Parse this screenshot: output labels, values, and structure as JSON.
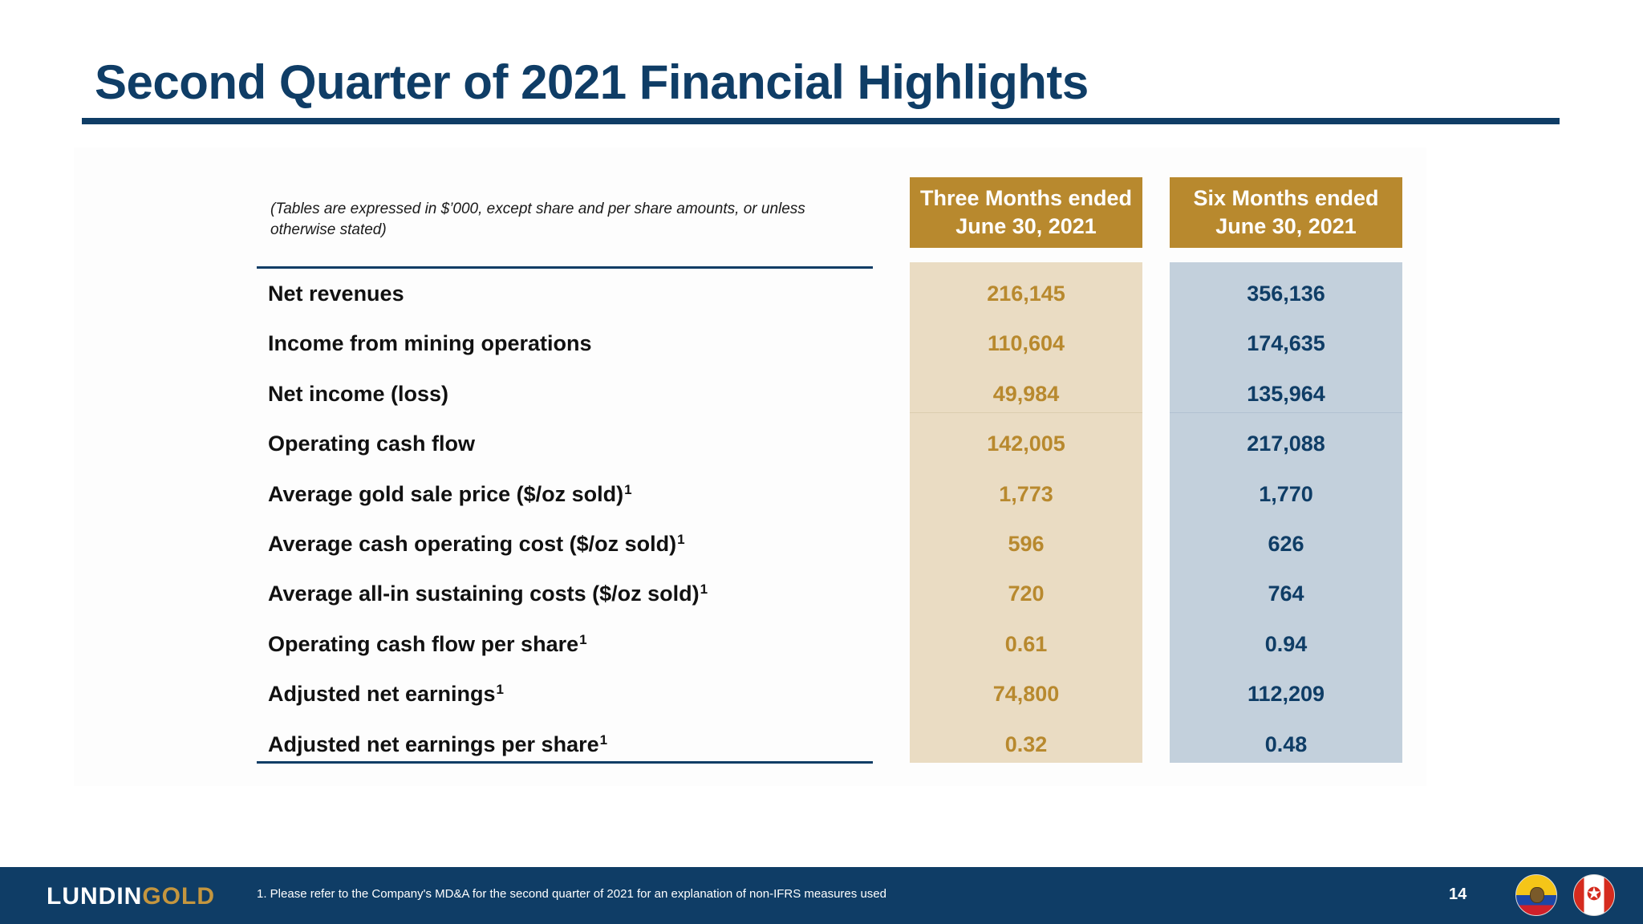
{
  "title": "Second Quarter of 2021 Financial Highlights",
  "note": "(Tables are expressed in $’000, except share and per share amounts, or unless otherwise stated)",
  "columns": [
    {
      "line1": "Three Months ended",
      "line2": "June 30, 2021"
    },
    {
      "line1": "Six Months ended",
      "line2": "June 30, 2021"
    }
  ],
  "rows": [
    {
      "label": "Net revenues",
      "sup": "",
      "three_months": "216,145",
      "six_months": "356,136"
    },
    {
      "label": "Income from mining operations",
      "sup": "",
      "three_months": "110,604",
      "six_months": "174,635"
    },
    {
      "label": "Net income (loss)",
      "sup": "",
      "three_months": "49,984",
      "six_months": "135,964"
    },
    {
      "label": "Operating cash flow",
      "sup": "",
      "three_months": "142,005",
      "six_months": "217,088"
    },
    {
      "label": "Average gold sale price ($/oz sold)",
      "sup": "1",
      "three_months": "1,773",
      "six_months": "1,770"
    },
    {
      "label": "Average cash operating cost ($/oz sold)",
      "sup": "1",
      "three_months": "596",
      "six_months": "626"
    },
    {
      "label": "Average all-in sustaining costs ($/oz sold)",
      "sup": "1",
      "three_months": "720",
      "six_months": "764"
    },
    {
      "label": "Operating cash flow per share",
      "sup": "1",
      "three_months": "0.61",
      "six_months": "0.94"
    },
    {
      "label": "Adjusted net earnings",
      "sup": "1",
      "three_months": "74,800",
      "six_months": "112,209"
    },
    {
      "label": "Adjusted net earnings per share",
      "sup": "1",
      "three_months": "0.32",
      "six_months": "0.48"
    }
  ],
  "footer": {
    "logo_part1": "LUNDIN",
    "logo_part2": "GOLD",
    "footnote": "1. Please refer to the Company's MD&A for the second quarter of 2021 for an explanation of non-IFRS measures used",
    "page_number": "14",
    "flag_icons": [
      "ecuador-flag-icon",
      "canada-flag-icon"
    ]
  },
  "colors": {
    "title_blue": "#0f3d66",
    "gold": "#b8892e",
    "gold_light": "#eadcc3",
    "blue_light": "#c3d0dc"
  }
}
